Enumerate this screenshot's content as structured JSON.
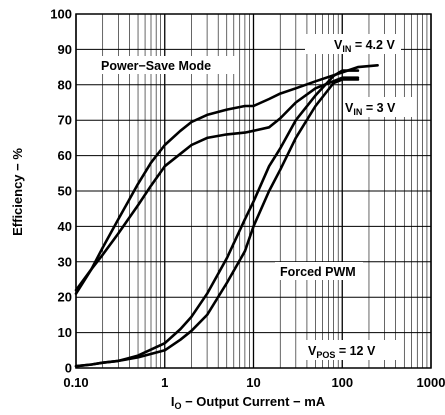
{
  "chart_data": {
    "type": "line",
    "xlabel": {
      "prefix": "I",
      "sub": "O",
      "rest": " − Output Current − mA"
    },
    "ylabel": "Efficiency − %",
    "x_scale": "log",
    "xlim": [
      0.1,
      1000
    ],
    "ylim": [
      0,
      100
    ],
    "x_ticks": [
      {
        "v": 0.1,
        "label": "0.10"
      },
      {
        "v": 1,
        "label": "1"
      },
      {
        "v": 10,
        "label": "10"
      },
      {
        "v": 100,
        "label": "100"
      },
      {
        "v": 1000,
        "label": "1000"
      }
    ],
    "y_ticks": [
      0,
      10,
      20,
      30,
      40,
      50,
      60,
      70,
      80,
      90,
      100
    ],
    "grid": true,
    "series": [
      {
        "points": [
          [
            0.1,
            21
          ],
          [
            0.15,
            28
          ],
          [
            0.2,
            34
          ],
          [
            0.3,
            42
          ],
          [
            0.5,
            52
          ],
          [
            0.7,
            58
          ],
          [
            1,
            63
          ],
          [
            1.5,
            67
          ],
          [
            2,
            69.5
          ],
          [
            3,
            71.5
          ],
          [
            5,
            73
          ],
          [
            8,
            74
          ],
          [
            10,
            74
          ],
          [
            15,
            76
          ],
          [
            20,
            77.5
          ],
          [
            30,
            79
          ],
          [
            50,
            81
          ],
          [
            100,
            83.5
          ],
          [
            150,
            85
          ],
          [
            250,
            85.5
          ]
        ]
      },
      {
        "points": [
          [
            0.1,
            22
          ],
          [
            0.15,
            28
          ],
          [
            0.2,
            32
          ],
          [
            0.3,
            38
          ],
          [
            0.5,
            46
          ],
          [
            0.7,
            51.5
          ],
          [
            1,
            57
          ],
          [
            1.5,
            60.5
          ],
          [
            2,
            63
          ],
          [
            3,
            65
          ],
          [
            5,
            66
          ],
          [
            8,
            66.5
          ],
          [
            10,
            67
          ],
          [
            15,
            68
          ],
          [
            20,
            70.5
          ],
          [
            30,
            75
          ],
          [
            50,
            79
          ],
          [
            100,
            82
          ],
          [
            150,
            82
          ]
        ]
      },
      {
        "points": [
          [
            0.1,
            0.5
          ],
          [
            0.15,
            1
          ],
          [
            0.2,
            1.5
          ],
          [
            0.3,
            2
          ],
          [
            0.5,
            3.5
          ],
          [
            1,
            7
          ],
          [
            1.5,
            11
          ],
          [
            2,
            14.5
          ],
          [
            3,
            21
          ],
          [
            5,
            31
          ],
          [
            8,
            42
          ],
          [
            10,
            47
          ],
          [
            15,
            57
          ],
          [
            20,
            62
          ],
          [
            30,
            70
          ],
          [
            50,
            77
          ],
          [
            80,
            82.5
          ],
          [
            100,
            84
          ],
          [
            150,
            84
          ]
        ]
      },
      {
        "points": [
          [
            0.1,
            0.5
          ],
          [
            0.15,
            1
          ],
          [
            0.2,
            1.5
          ],
          [
            0.3,
            2
          ],
          [
            0.5,
            3
          ],
          [
            1,
            5
          ],
          [
            1.5,
            8
          ],
          [
            2,
            10.5
          ],
          [
            3,
            15
          ],
          [
            5,
            24
          ],
          [
            8,
            33
          ],
          [
            10,
            40
          ],
          [
            15,
            50
          ],
          [
            20,
            56
          ],
          [
            30,
            65
          ],
          [
            50,
            74
          ],
          [
            80,
            80.5
          ],
          [
            100,
            81.5
          ],
          [
            150,
            81.5
          ]
        ]
      }
    ],
    "annotations": [
      {
        "id": "power-save",
        "text": "Power−Save Mode"
      },
      {
        "id": "forced-pwm",
        "text": "Forced PWM"
      },
      {
        "id": "vin-42",
        "main": "V",
        "sub": "IN",
        "rest": " = 4.2 V"
      },
      {
        "id": "vin-3",
        "main": "V",
        "sub": "IN",
        "rest": " = 3 V"
      },
      {
        "id": "vpos",
        "main": "V",
        "sub": "POS",
        "rest": " = 12 V"
      }
    ]
  }
}
